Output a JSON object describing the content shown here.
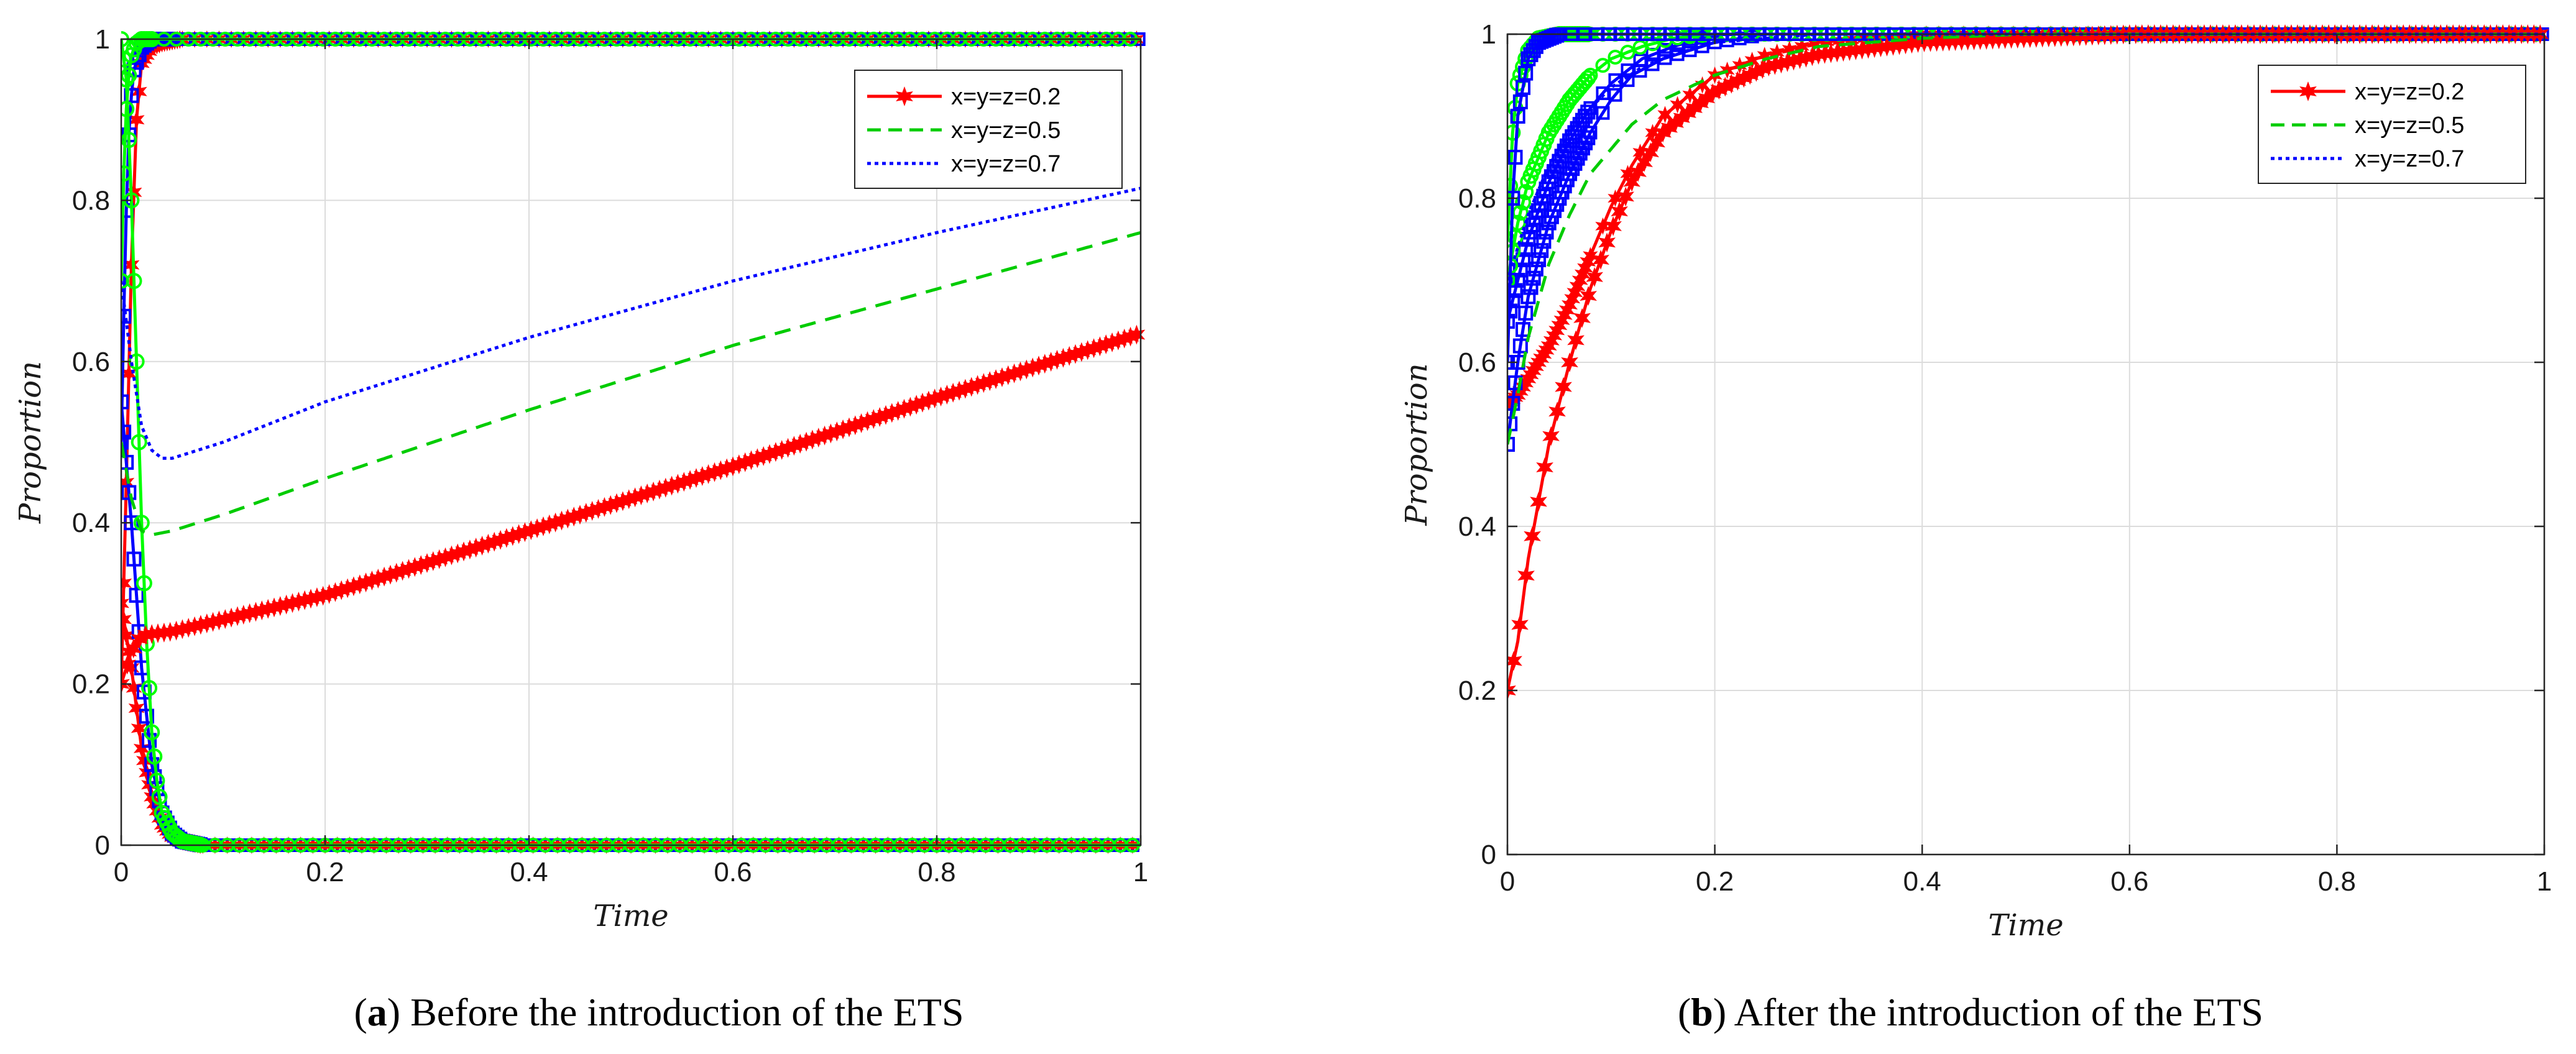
{
  "chart_data": [
    {
      "id": "a",
      "type": "line",
      "caption_letter": "a",
      "caption_text": "Before the introduction of the ETS",
      "xlabel": "Time",
      "ylabel": "Proportion",
      "xlim": [
        0,
        1
      ],
      "ylim": [
        0,
        1
      ],
      "xticks": [
        0,
        0.2,
        0.4,
        0.6,
        0.8,
        1
      ],
      "xtick_labels": [
        "0",
        "0.2",
        "0.4",
        "0.6",
        "0.8",
        "1"
      ],
      "yticks": [
        0,
        0.2,
        0.4,
        0.6,
        0.8,
        1
      ],
      "ytick_labels": [
        "0",
        "0.2",
        "0.4",
        "0.6",
        "0.8",
        "1"
      ],
      "grid": true,
      "legend_position": "top-right",
      "series": [
        {
          "name": "x=y=z=0.2",
          "color": "#ff0000",
          "style": "solid-star",
          "x": [
            0,
            0.01,
            0.02,
            0.03,
            0.05,
            0.1,
            0.2,
            0.4,
            0.6,
            0.8,
            1.0
          ],
          "y": [
            0.2,
            0.24,
            0.26,
            0.262,
            0.265,
            0.28,
            0.31,
            0.39,
            0.47,
            0.555,
            0.635
          ]
        },
        {
          "name": "x=y=z=0.5",
          "color": "#00cc00",
          "style": "dashed",
          "x": [
            0,
            0.01,
            0.02,
            0.03,
            0.05,
            0.1,
            0.2,
            0.4,
            0.6,
            0.8,
            1.0
          ],
          "y": [
            0.5,
            0.43,
            0.39,
            0.385,
            0.39,
            0.41,
            0.455,
            0.54,
            0.62,
            0.69,
            0.76
          ]
        },
        {
          "name": "x=y=z=0.7",
          "color": "#0000ff",
          "style": "dotted",
          "x": [
            0,
            0.01,
            0.02,
            0.03,
            0.04,
            0.05,
            0.1,
            0.2,
            0.4,
            0.6,
            0.8,
            1.0
          ],
          "y": [
            0.7,
            0.6,
            0.52,
            0.49,
            0.48,
            0.48,
            0.5,
            0.55,
            0.63,
            0.7,
            0.76,
            0.815
          ]
        }
      ],
      "trajectories": [
        {
          "name": "rise-to-1",
          "color": "#ff0000",
          "x": [
            0,
            0.005,
            0.01,
            0.015,
            0.02,
            0.03,
            0.04,
            0.06,
            1.0
          ],
          "y": [
            0.2,
            0.45,
            0.72,
            0.9,
            0.97,
            0.99,
            0.995,
            1.0,
            1.0
          ]
        },
        {
          "name": "rise-to-1",
          "color": "#0000ff",
          "x": [
            0,
            0.004,
            0.008,
            0.012,
            0.02,
            0.03,
            0.05,
            1.0
          ],
          "y": [
            0.5,
            0.75,
            0.9,
            0.96,
            0.99,
            1.0,
            1.0,
            1.0
          ]
        },
        {
          "name": "rise-to-1",
          "color": "#00ff00",
          "x": [
            0,
            0.003,
            0.006,
            0.01,
            0.015,
            0.02,
            0.03,
            1.0
          ],
          "y": [
            0.7,
            0.86,
            0.94,
            0.98,
            0.995,
            1.0,
            1.0,
            1.0
          ]
        },
        {
          "name": "decay-to-0",
          "color": "#ff0000",
          "x": [
            0,
            0.01,
            0.02,
            0.03,
            0.04,
            0.05,
            0.06,
            0.08,
            1.0
          ],
          "y": [
            0.3,
            0.22,
            0.12,
            0.06,
            0.025,
            0.01,
            0.005,
            0.0,
            0.0
          ]
        },
        {
          "name": "decay-to-0",
          "color": "#0000ff",
          "x": [
            0,
            0.01,
            0.02,
            0.03,
            0.04,
            0.05,
            0.06,
            0.08,
            1.0
          ],
          "y": [
            0.55,
            0.4,
            0.22,
            0.1,
            0.04,
            0.015,
            0.005,
            0.0,
            0.0
          ]
        },
        {
          "name": "decay-to-0",
          "color": "#00ff00",
          "x": [
            0,
            0.005,
            0.01,
            0.015,
            0.02,
            0.025,
            0.03,
            0.035,
            0.04,
            0.05,
            0.06,
            0.08,
            1.0
          ],
          "y": [
            1.0,
            0.95,
            0.8,
            0.6,
            0.4,
            0.25,
            0.14,
            0.08,
            0.04,
            0.015,
            0.005,
            0.0,
            0.0
          ]
        }
      ]
    },
    {
      "id": "b",
      "type": "line",
      "caption_letter": "b",
      "caption_text": "After the introduction of the ETS",
      "xlabel": "Time",
      "ylabel": "Proportion",
      "xlim": [
        0,
        1
      ],
      "ylim": [
        0,
        1
      ],
      "xticks": [
        0,
        0.2,
        0.4,
        0.6,
        0.8,
        1
      ],
      "xtick_labels": [
        "0",
        "0.2",
        "0.4",
        "0.6",
        "0.8",
        "1"
      ],
      "yticks": [
        0,
        0.2,
        0.4,
        0.6,
        0.8,
        1
      ],
      "ytick_labels": [
        "0",
        "0.2",
        "0.4",
        "0.6",
        "0.8",
        "1"
      ],
      "grid": true,
      "legend_position": "top-right",
      "series": [
        {
          "name": "x=y=z=0.2",
          "color": "#ff0000",
          "style": "solid-star",
          "x": [
            0,
            0.01,
            0.02,
            0.04,
            0.06,
            0.08,
            0.1,
            0.12,
            0.15,
            0.2,
            0.25,
            0.3,
            0.4,
            0.5,
            0.6,
            1.0
          ],
          "y": [
            0.2,
            0.26,
            0.36,
            0.5,
            0.6,
            0.69,
            0.76,
            0.82,
            0.88,
            0.93,
            0.96,
            0.975,
            0.99,
            0.995,
            1.0,
            1.0
          ]
        },
        {
          "name": "x=y=z=0.5",
          "color": "#00cc00",
          "style": "dashed",
          "x": [
            0,
            0.01,
            0.02,
            0.04,
            0.06,
            0.08,
            0.1,
            0.12,
            0.15,
            0.2,
            0.25,
            0.3,
            0.4,
            0.5,
            1.0
          ],
          "y": [
            0.5,
            0.56,
            0.63,
            0.72,
            0.78,
            0.83,
            0.86,
            0.89,
            0.92,
            0.95,
            0.97,
            0.985,
            0.995,
            1.0,
            1.0
          ]
        },
        {
          "name": "x=y=z=0.7",
          "color": "#0000ff",
          "style": "dotted",
          "x": [
            0,
            0.01,
            0.02,
            0.04,
            0.06,
            0.08,
            0.1,
            0.13,
            0.16,
            0.2,
            0.25,
            0.3,
            1.0
          ],
          "y": [
            0.7,
            0.74,
            0.78,
            0.84,
            0.88,
            0.91,
            0.935,
            0.96,
            0.975,
            0.99,
            0.995,
            1.0,
            1.0
          ]
        }
      ],
      "trajectories": [
        {
          "name": "branch",
          "color": "#ff0000",
          "x": [
            0,
            0.01,
            0.02,
            0.04,
            0.06,
            0.08,
            0.1,
            0.12,
            0.15,
            0.2,
            0.25,
            0.3,
            0.4,
            1.0
          ],
          "y": [
            0.55,
            0.56,
            0.58,
            0.62,
            0.67,
            0.73,
            0.79,
            0.84,
            0.9,
            0.95,
            0.975,
            0.99,
            1.0,
            1.0
          ]
        },
        {
          "name": "branch",
          "color": "#0000ff",
          "x": [
            0,
            0.01,
            0.02,
            0.04,
            0.06,
            0.08,
            0.1,
            0.12,
            0.15,
            0.2,
            0.25,
            1.0
          ],
          "y": [
            0.5,
            0.6,
            0.68,
            0.77,
            0.83,
            0.88,
            0.92,
            0.95,
            0.97,
            0.99,
            1.0,
            1.0
          ]
        },
        {
          "name": "branch",
          "color": "#0000ff",
          "x": [
            0,
            0.01,
            0.02,
            0.04,
            0.06,
            0.08,
            0.1,
            0.13,
            0.16,
            0.2,
            1.0
          ],
          "y": [
            0.65,
            0.7,
            0.75,
            0.82,
            0.87,
            0.91,
            0.94,
            0.97,
            0.985,
            1.0,
            1.0
          ]
        },
        {
          "name": "branch",
          "color": "#00ff00",
          "x": [
            0,
            0.01,
            0.02,
            0.04,
            0.06,
            0.08,
            0.1,
            0.13,
            0.16,
            0.2,
            1.0
          ],
          "y": [
            0.7,
            0.77,
            0.82,
            0.88,
            0.92,
            0.95,
            0.97,
            0.985,
            0.995,
            1.0,
            1.0
          ]
        },
        {
          "name": "branch",
          "color": "#00ff00",
          "x": [
            0,
            0.005,
            0.01,
            0.02,
            0.03,
            0.05,
            0.1,
            1.0
          ],
          "y": [
            0.75,
            0.88,
            0.94,
            0.98,
            0.995,
            1.0,
            1.0,
            1.0
          ]
        },
        {
          "name": "branch",
          "color": "#0000ff",
          "x": [
            0,
            0.005,
            0.01,
            0.02,
            0.03,
            0.05,
            1.0
          ],
          "y": [
            0.6,
            0.8,
            0.9,
            0.97,
            0.99,
            1.0,
            1.0
          ]
        }
      ]
    }
  ]
}
